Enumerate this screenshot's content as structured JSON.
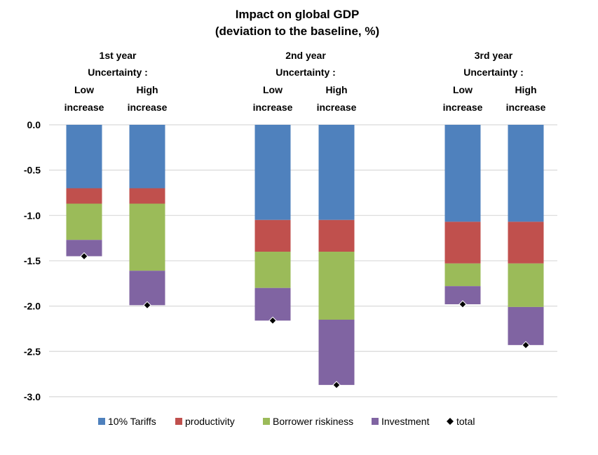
{
  "chart_data": {
    "type": "bar",
    "stacked": true,
    "title": "Impact on global GDP",
    "subtitle": "(deviation to the baseline, %)",
    "ylim": [
      -3.0,
      0.0
    ],
    "yticks": [
      "0.0",
      "-0.5",
      "-1.0",
      "-1.5",
      "-2.0",
      "-2.5",
      "-3.0"
    ],
    "ytick_values": [
      0.0,
      -0.5,
      -1.0,
      -1.5,
      -2.0,
      -2.5,
      -3.0
    ],
    "grid": true,
    "legend_position": "bottom",
    "groups": [
      {
        "year_label": "1st year",
        "uncertainty_label": "Uncertainty :",
        "categories": [
          [
            "Low",
            "increase"
          ],
          [
            "High",
            "increase"
          ]
        ]
      },
      {
        "year_label": "2nd year",
        "uncertainty_label": "Uncertainty :",
        "categories": [
          [
            "Low",
            "increase"
          ],
          [
            "High",
            "increase"
          ]
        ]
      },
      {
        "year_label": "3rd year",
        "uncertainty_label": "Uncertainty :",
        "categories": [
          [
            "Low",
            "increase"
          ],
          [
            "High",
            "increase"
          ]
        ]
      }
    ],
    "series": [
      {
        "name": "10% Tariffs",
        "color": "#4F81BD",
        "values": [
          -0.7,
          -0.7,
          -1.05,
          -1.05,
          -1.07,
          -1.07
        ]
      },
      {
        "name": "productivity",
        "color": "#C0504D",
        "values": [
          -0.17,
          -0.17,
          -0.35,
          -0.35,
          -0.46,
          -0.46
        ]
      },
      {
        "name": "Borrower riskiness",
        "color": "#9BBB59",
        "values": [
          -0.4,
          -0.74,
          -0.4,
          -0.75,
          -0.25,
          -0.48
        ]
      },
      {
        "name": "Investment",
        "color": "#8064A2",
        "values": [
          -0.18,
          -0.38,
          -0.36,
          -0.72,
          -0.2,
          -0.42
        ]
      }
    ],
    "total": {
      "name": "total",
      "color": "#000000",
      "values": [
        -1.45,
        -1.99,
        -2.16,
        -2.87,
        -1.98,
        -2.43
      ]
    }
  }
}
